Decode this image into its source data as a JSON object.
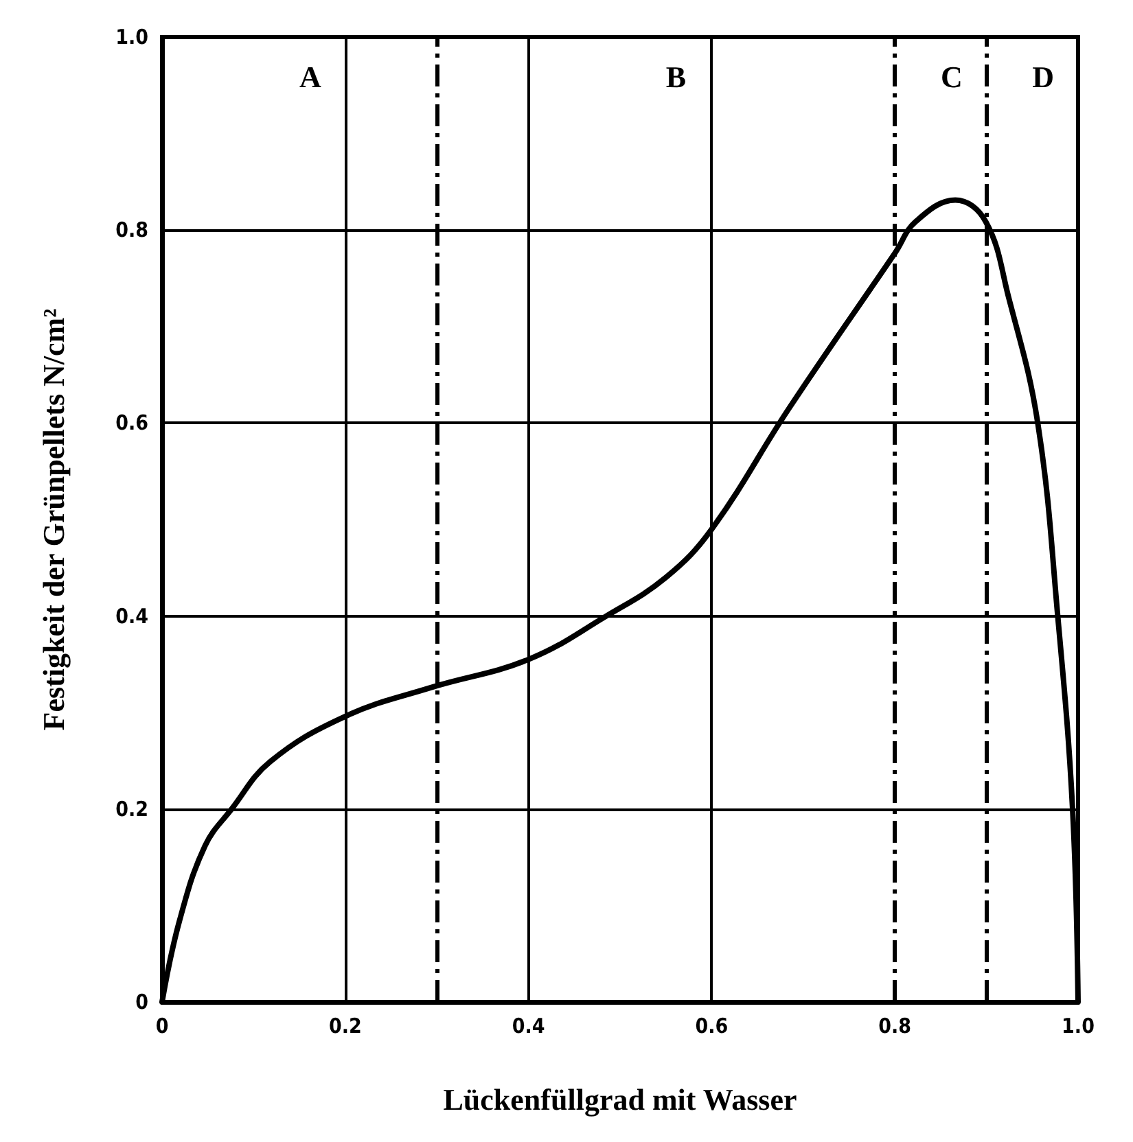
{
  "chart_data": {
    "type": "line",
    "xlabel": "Lückenfüllgrad mit Wasser",
    "ylabel": "Festigkeit der Grünpellets N/cm²",
    "series": [
      {
        "color": "#000000",
        "x": [
          0,
          0.019,
          0.047,
          0.076,
          0.118,
          0.2,
          0.294,
          0.4,
          0.485,
          0.55,
          0.6,
          0.685,
          0.8,
          0.823,
          0.866,
          0.899,
          0.924,
          0.956,
          0.978,
          0.994,
          1.0
        ],
        "values": [
          0,
          0.084,
          0.162,
          0.2,
          0.249,
          0.296,
          0.326,
          0.355,
          0.4,
          0.44,
          0.49,
          0.616,
          0.776,
          0.809,
          0.831,
          0.809,
          0.731,
          0.6,
          0.398,
          0.2,
          0
        ]
      }
    ],
    "xlim": [
      0,
      1.0
    ],
    "ylim": [
      0,
      1.0
    ],
    "xticks": [
      0,
      0.2,
      0.4,
      0.6,
      0.8,
      {
        "value": 1.0,
        "label": "1.0"
      }
    ],
    "yticks": [
      0,
      0.2,
      0.4,
      0.6,
      0.8,
      {
        "value": 1.0,
        "label": "1.0"
      }
    ],
    "grid": true,
    "marker": "none",
    "line_style": "solid",
    "ref_lines": [
      {
        "axis": "x",
        "value": 0.3,
        "line_style": "dashed"
      },
      {
        "axis": "x",
        "value": 0.8,
        "line_style": "dashed"
      },
      {
        "axis": "x",
        "value": 0.9,
        "line_style": "dashed"
      }
    ],
    "annotations": [
      "A",
      "B",
      "C",
      "D"
    ]
  }
}
